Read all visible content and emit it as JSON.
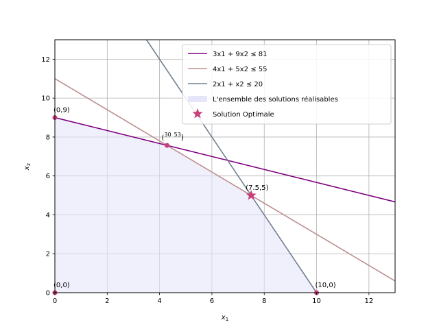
{
  "chart_data": {
    "type": "line",
    "xlabel": "x1",
    "ylabel": "x2",
    "xlim": [
      0,
      13
    ],
    "ylim": [
      0,
      13
    ],
    "xticks": [
      0,
      2,
      4,
      6,
      8,
      10,
      12
    ],
    "yticks": [
      0,
      2,
      4,
      6,
      8,
      10,
      12
    ],
    "grid": true,
    "legend_position": "top-right",
    "colors": {
      "c1": "#800080",
      "c2": "#bc8f8f",
      "c3": "#708090",
      "region": "#e6e6fa",
      "points": "#c8407a",
      "grid": "#b0b0b0"
    },
    "series": [
      {
        "name": "3x1 + 9x2 ≤ 81",
        "a": 3,
        "b": 9,
        "c": 81
      },
      {
        "name": "4x1 + 5x2 ≤ 55",
        "a": 4,
        "b": 5,
        "c": 55
      },
      {
        "name": "2x1 + x2 ≤ 20",
        "a": 2,
        "b": 1,
        "c": 20
      }
    ],
    "feasible_region": {
      "name": "L'ensemble des solutions réalisables",
      "vertices": [
        [
          0,
          0
        ],
        [
          0,
          9
        ],
        [
          4.2857,
          7.5714
        ],
        [
          7.5,
          5
        ],
        [
          10,
          0
        ]
      ]
    },
    "points": [
      {
        "x": 0,
        "y": 9,
        "label": "(0,9)"
      },
      {
        "x": 4.2857,
        "y": 7.5714,
        "label": "(30/7, 53/7)"
      },
      {
        "x": 0,
        "y": 0,
        "label": "(0,0)"
      },
      {
        "x": 10,
        "y": 0,
        "label": "(10,0)"
      }
    ],
    "optimal": {
      "name": "Solution Optimale",
      "x": 7.5,
      "y": 5,
      "label": "(7.5,5)"
    }
  }
}
